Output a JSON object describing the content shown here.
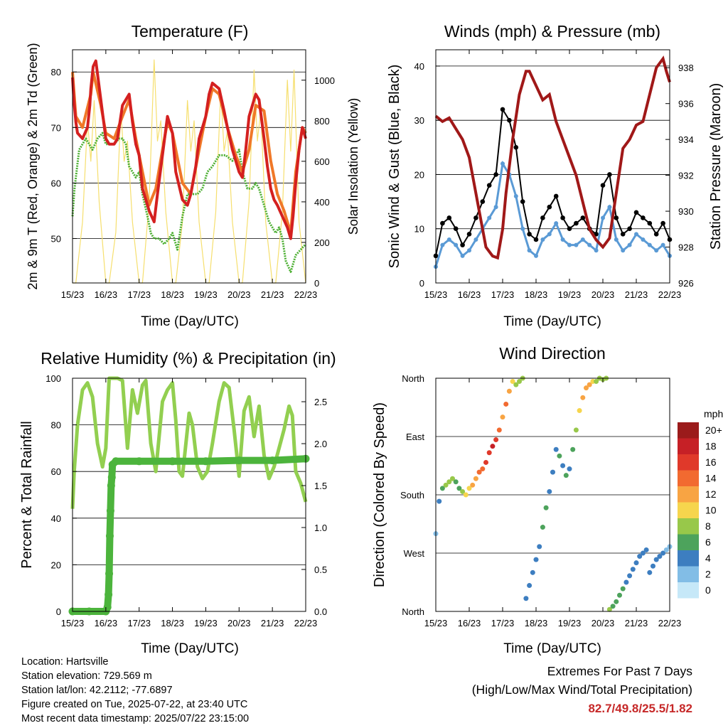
{
  "x_ticks": [
    "15/23",
    "16/23",
    "17/23",
    "18/23",
    "19/23",
    "20/23",
    "21/23",
    "22/23"
  ],
  "chart_data": [
    {
      "type": "line",
      "title": "Temperature (F)",
      "xlabel": "Time (Day/UTC)",
      "ylabel": "2m & 9m T (Red, Orange) & 2m Td (Green)",
      "y2label": "Solar Insolation (Yellow)",
      "ylim": [
        42,
        84
      ],
      "y_ticks": [
        50,
        60,
        70,
        80
      ],
      "y2lim": [
        0,
        1150
      ],
      "y2_ticks": [
        0,
        200,
        400,
        600,
        800,
        1000
      ],
      "grid": "horizontal",
      "series": [
        {
          "color": "#d42020",
          "axis": "left",
          "x": [
            0,
            0.04,
            0.1,
            0.15,
            0.3,
            0.45,
            0.52,
            0.55,
            0.62,
            0.7,
            0.85,
            1.0,
            1.1,
            1.25,
            1.35,
            1.5,
            1.7,
            1.8,
            1.9,
            2.0,
            2.1,
            2.3,
            2.45,
            2.55,
            2.7,
            2.85,
            3.0,
            3.1,
            3.3,
            3.45,
            3.55,
            3.7,
            3.8,
            3.9,
            4.0,
            4.1,
            4.2,
            4.4,
            4.55,
            4.65,
            4.8,
            4.9,
            5.0,
            5.1,
            5.2,
            5.3,
            5.5,
            5.6,
            5.75,
            5.85,
            5.95,
            6.05,
            6.15,
            6.3,
            6.45,
            6.55,
            6.62,
            6.7,
            6.8,
            6.9,
            7.0
          ],
          "values": [
            79,
            75,
            71,
            69,
            68,
            70,
            74,
            77,
            81,
            82,
            75,
            68,
            67,
            67,
            68,
            74,
            76,
            71,
            67,
            65,
            59,
            55,
            53,
            58,
            65,
            72,
            69,
            62,
            57,
            56,
            58,
            63,
            68,
            70,
            72,
            76,
            78,
            77,
            73,
            70,
            66,
            64,
            62,
            61,
            66,
            72,
            76,
            75,
            68,
            63,
            59,
            57,
            56,
            54,
            52,
            50,
            54,
            60,
            66,
            70,
            68
          ]
        },
        {
          "color": "#f07828",
          "axis": "left",
          "x": [
            0,
            0.1,
            0.3,
            0.55,
            0.62,
            0.85,
            1.0,
            1.25,
            1.5,
            1.7,
            1.9,
            2.1,
            2.3,
            2.5,
            2.7,
            2.85,
            3.0,
            3.3,
            3.55,
            3.8,
            4.0,
            4.2,
            4.4,
            4.65,
            4.9,
            5.1,
            5.3,
            5.5,
            5.75,
            5.95,
            6.15,
            6.35,
            6.55,
            6.7,
            6.9,
            7.0
          ],
          "values": [
            80,
            72,
            70,
            76,
            80,
            74,
            69,
            68,
            72,
            75,
            68,
            62,
            56,
            59,
            66,
            71,
            69,
            60,
            58,
            66,
            72,
            77,
            76,
            70,
            65,
            62,
            66,
            74,
            73,
            64,
            58,
            55,
            51,
            62,
            70,
            69
          ]
        },
        {
          "color": "#4caf32",
          "axis": "left",
          "x": [
            0,
            0.06,
            0.12,
            0.2,
            0.3,
            0.4,
            0.5,
            0.6,
            0.75,
            0.9,
            1.0,
            1.1,
            1.25,
            1.4,
            1.5,
            1.6,
            1.7,
            1.8,
            1.9,
            2.0,
            2.1,
            2.25,
            2.35,
            2.45,
            2.6,
            2.75,
            2.9,
            3.0,
            3.15,
            3.3,
            3.45,
            3.6,
            3.75,
            3.9,
            4.05,
            4.2,
            4.4,
            4.6,
            4.8,
            5.0,
            5.1,
            5.25,
            5.4,
            5.5,
            5.6,
            5.75,
            5.9,
            6.0,
            6.1,
            6.2,
            6.3,
            6.4,
            6.55,
            6.7,
            6.85,
            7.0
          ],
          "values": [
            54,
            59,
            62,
            66,
            67,
            68,
            67,
            66,
            68,
            69,
            67,
            67,
            67,
            68,
            68,
            67,
            63,
            62,
            61,
            62,
            58,
            54,
            51,
            50,
            50,
            49,
            50,
            51,
            48,
            54,
            58,
            58,
            58,
            59,
            62,
            63,
            65,
            65,
            64,
            66,
            62,
            59,
            59,
            60,
            59,
            56,
            53,
            52,
            51,
            52,
            50,
            46,
            44,
            47,
            48,
            49
          ]
        },
        {
          "color": "#f6df6e",
          "axis": "right",
          "x": [
            0,
            0.1,
            0.3,
            0.45,
            0.55,
            0.65,
            0.8,
            1.0,
            1.1,
            1.3,
            1.45,
            1.55,
            1.65,
            1.8,
            2.0,
            2.1,
            2.3,
            2.45,
            2.55,
            2.65,
            2.8,
            3.0,
            3.1,
            3.3,
            3.45,
            3.55,
            3.65,
            3.8,
            4.0,
            4.1,
            4.3,
            4.45,
            4.55,
            4.65,
            4.8,
            5.0,
            5.1,
            5.3,
            5.45,
            5.55,
            5.65,
            5.8,
            6.0,
            6.1,
            6.3,
            6.45,
            6.55,
            6.65,
            6.8,
            7.0
          ],
          "values": [
            0,
            0,
            300,
            800,
            600,
            900,
            400,
            0,
            0,
            250,
            850,
            600,
            700,
            300,
            0,
            0,
            400,
            1100,
            700,
            800,
            350,
            0,
            0,
            300,
            900,
            650,
            800,
            300,
            0,
            0,
            350,
            950,
            650,
            750,
            300,
            0,
            0,
            400,
            1050,
            700,
            850,
            300,
            0,
            0,
            350,
            1000,
            650,
            1050,
            300,
            0
          ]
        }
      ]
    },
    {
      "type": "scatter",
      "title": "Winds (mph) & Pressure (mb)",
      "xlabel": "Time (Day/UTC)",
      "ylabel": "Sonic Wind & Gust (Blue, Black)",
      "y2label": "Station Pressure (Maroon)",
      "ylim": [
        0,
        43
      ],
      "y_ticks": [
        0,
        10,
        20,
        30,
        40
      ],
      "y2lim": [
        926,
        939
      ],
      "y2_ticks": [
        926,
        928,
        930,
        932,
        934,
        936,
        938
      ],
      "grid": "horizontal",
      "series": [
        {
          "name": "Gust",
          "color": "#000000",
          "x": [
            0,
            0.2,
            0.4,
            0.6,
            0.8,
            1.0,
            1.2,
            1.4,
            1.6,
            1.8,
            2.0,
            2.2,
            2.4,
            2.6,
            2.8,
            3.0,
            3.2,
            3.4,
            3.6,
            3.8,
            4.0,
            4.2,
            4.4,
            4.6,
            4.8,
            5.0,
            5.2,
            5.4,
            5.6,
            5.8,
            6.0,
            6.2,
            6.4,
            6.6,
            6.8,
            7.0
          ],
          "values": [
            5,
            11,
            12,
            10,
            7,
            9,
            12,
            15,
            18,
            20,
            32,
            30,
            25,
            15,
            9,
            8,
            12,
            14,
            16,
            12,
            10,
            11,
            12,
            10,
            9,
            18,
            20,
            12,
            9,
            10,
            13,
            12,
            11,
            9,
            11,
            8
          ]
        },
        {
          "name": "Wind",
          "color": "#5a9ad5",
          "x": [
            0,
            0.2,
            0.4,
            0.6,
            0.8,
            1.0,
            1.2,
            1.4,
            1.6,
            1.8,
            2.0,
            2.2,
            2.4,
            2.6,
            2.8,
            3.0,
            3.2,
            3.4,
            3.6,
            3.8,
            4.0,
            4.2,
            4.4,
            4.6,
            4.8,
            5.0,
            5.2,
            5.4,
            5.6,
            5.8,
            6.0,
            6.2,
            6.4,
            6.6,
            6.8,
            7.0
          ],
          "values": [
            3,
            7,
            8,
            7,
            5,
            6,
            8,
            10,
            12,
            14,
            22,
            20,
            16,
            10,
            6,
            5,
            8,
            9,
            11,
            8,
            7,
            7,
            8,
            7,
            6,
            12,
            14,
            8,
            6,
            7,
            9,
            8,
            7,
            6,
            7,
            5
          ]
        },
        {
          "name": "Pressure",
          "color": "#a01818",
          "axis": "right",
          "x": [
            0,
            0.2,
            0.4,
            0.6,
            0.8,
            1.0,
            1.1,
            1.3,
            1.5,
            1.7,
            1.85,
            2.0,
            2.1,
            2.3,
            2.5,
            2.7,
            2.8,
            3.0,
            3.2,
            3.4,
            3.6,
            3.8,
            4.0,
            4.2,
            4.4,
            4.6,
            4.8,
            5.0,
            5.2,
            5.4,
            5.6,
            5.8,
            6.0,
            6.2,
            6.4,
            6.6,
            6.8,
            6.9,
            7.0
          ],
          "values": [
            935.3,
            935.0,
            935.2,
            934.6,
            934.0,
            933.0,
            932.0,
            930.0,
            928.0,
            927.5,
            927.4,
            929.0,
            931.0,
            934.0,
            936.5,
            937.8,
            937.8,
            937.0,
            936.2,
            936.5,
            935.0,
            934.0,
            933.0,
            932.0,
            930.5,
            929.0,
            928.4,
            928.0,
            928.5,
            931.0,
            933.5,
            934.0,
            934.8,
            935.0,
            936.5,
            938.0,
            938.5,
            937.8,
            937.2
          ]
        }
      ]
    },
    {
      "type": "line",
      "title": "Relative Humidity (%) & Precipitation (in)",
      "xlabel": "Time (Day/UTC)",
      "ylabel": "Percent & Total Rainfall",
      "ylim": [
        0,
        100
      ],
      "y_ticks": [
        0,
        20,
        40,
        60,
        80,
        100
      ],
      "y2lim": [
        0,
        2.78
      ],
      "y2_ticks": [
        "0.0",
        "0.5",
        "1.0",
        "1.5",
        "2.0",
        "2.5"
      ],
      "grid": "horizontal",
      "series": [
        {
          "name": "RH",
          "color": "#92cf50",
          "x": [
            0,
            0.05,
            0.15,
            0.3,
            0.45,
            0.6,
            0.75,
            0.9,
            1.0,
            1.1,
            1.2,
            1.35,
            1.5,
            1.65,
            1.8,
            1.95,
            2.1,
            2.2,
            2.35,
            2.5,
            2.7,
            2.85,
            3.0,
            3.1,
            3.2,
            3.3,
            3.5,
            3.6,
            3.75,
            3.9,
            4.05,
            4.2,
            4.4,
            4.55,
            4.7,
            4.85,
            5.0,
            5.15,
            5.3,
            5.45,
            5.6,
            5.75,
            5.9,
            6.05,
            6.2,
            6.35,
            6.5,
            6.6,
            6.7,
            6.85,
            7.0
          ],
          "values": [
            44,
            60,
            80,
            95,
            98,
            92,
            72,
            62,
            70,
            100,
            100,
            100,
            99,
            70,
            95,
            85,
            97,
            99,
            72,
            60,
            90,
            95,
            98,
            82,
            60,
            58,
            85,
            80,
            62,
            57,
            60,
            72,
            90,
            98,
            96,
            78,
            58,
            86,
            92,
            75,
            88,
            67,
            57,
            62,
            70,
            78,
            88,
            84,
            60,
            55,
            47
          ]
        },
        {
          "name": "Precipitation",
          "color": "#4cb43c",
          "axis": "right",
          "x": [
            0,
            0.5,
            1.0,
            1.05,
            1.08,
            1.1,
            1.12,
            1.14,
            1.16,
            1.18,
            1.2,
            1.3,
            2.0,
            3.0,
            4.0,
            5.0,
            6.0,
            7.0
          ],
          "values": [
            0,
            0,
            0,
            0.05,
            0.2,
            0.45,
            0.9,
            1.2,
            1.5,
            1.6,
            1.75,
            1.79,
            1.79,
            1.79,
            1.79,
            1.8,
            1.8,
            1.82
          ]
        }
      ]
    },
    {
      "type": "scatter",
      "title": "Wind Direction",
      "xlabel": "Time (Day/UTC)",
      "ylabel": "Direction (Colored By Speed)",
      "y_ticks": [
        "North",
        "West",
        "South",
        "East",
        "North"
      ],
      "ylim": [
        0,
        360
      ],
      "grid": "horizontal",
      "legend_title": "mph",
      "legend_labels": [
        "20+",
        "18",
        "16",
        "14",
        "12",
        "10",
        "8",
        "6",
        "4",
        "2",
        "0"
      ],
      "legend_colors": [
        "#9b1b1b",
        "#c62026",
        "#e0392a",
        "#f26a30",
        "#f8a443",
        "#f6d54d",
        "#98c84a",
        "#4da35c",
        "#3d7ec0",
        "#82bde6",
        "#c6e8f8"
      ],
      "x": [
        0,
        0.1,
        0.2,
        0.3,
        0.4,
        0.5,
        0.6,
        0.7,
        0.8,
        0.9,
        1.0,
        1.1,
        1.2,
        1.3,
        1.4,
        1.5,
        1.6,
        1.7,
        1.8,
        1.9,
        2.0,
        2.1,
        2.2,
        2.3,
        2.4,
        2.5,
        2.6,
        2.7,
        2.8,
        2.9,
        3.0,
        3.1,
        3.2,
        3.3,
        3.4,
        3.5,
        3.6,
        3.7,
        3.8,
        3.9,
        4.0,
        4.1,
        4.2,
        4.3,
        4.4,
        4.5,
        4.6,
        4.7,
        4.8,
        4.9,
        5.0,
        5.1,
        5.2,
        5.3,
        5.4,
        5.5,
        5.6,
        5.7,
        5.8,
        5.9,
        6.0,
        6.1,
        6.2,
        6.3,
        6.4,
        6.5,
        6.6,
        6.7,
        6.8,
        6.9,
        7.0
      ],
      "values": [
        120,
        170,
        190,
        195,
        200,
        205,
        200,
        190,
        185,
        180,
        190,
        195,
        205,
        215,
        220,
        230,
        245,
        255,
        265,
        280,
        300,
        320,
        340,
        355,
        350,
        355,
        360,
        20,
        40,
        60,
        80,
        100,
        130,
        160,
        185,
        215,
        250,
        240,
        225,
        210,
        220,
        250,
        280,
        310,
        330,
        345,
        350,
        355,
        355,
        360,
        358,
        360,
        3,
        8,
        15,
        25,
        35,
        45,
        55,
        65,
        75,
        85,
        90,
        95,
        60,
        70,
        80,
        85,
        90,
        95,
        100
      ],
      "speeds": [
        3,
        4,
        7,
        8,
        9,
        8,
        7,
        7,
        9,
        10,
        11,
        12,
        13,
        14,
        15,
        16,
        17,
        18,
        16,
        14,
        13,
        14,
        12,
        10,
        9,
        9,
        8,
        4,
        4,
        4,
        5,
        5,
        6,
        6,
        5,
        4,
        5,
        6,
        5,
        6,
        5,
        7,
        9,
        11,
        12,
        13,
        12,
        10,
        9,
        8,
        8,
        9,
        9,
        7,
        7,
        6,
        6,
        5,
        5,
        5,
        5,
        4,
        4,
        4,
        5,
        4,
        4,
        4,
        4,
        3,
        3
      ]
    }
  ],
  "info": {
    "location": "Location: Hartsville",
    "elevation": "Station elevation: 729.569 m",
    "latlon": "Station lat/lon: 42.2112; -77.6897",
    "created": "Figure created on Tue, 2025-07-22, at 23:40 UTC",
    "recent": "Most recent data timestamp: 2025/07/22 23:15:00"
  },
  "extremes": {
    "title": "Extremes For Past 7 Days",
    "subtitle": "(High/Low/Max Wind/Total Precipitation)",
    "values": "82.7/49.8/25.5/1.82"
  }
}
